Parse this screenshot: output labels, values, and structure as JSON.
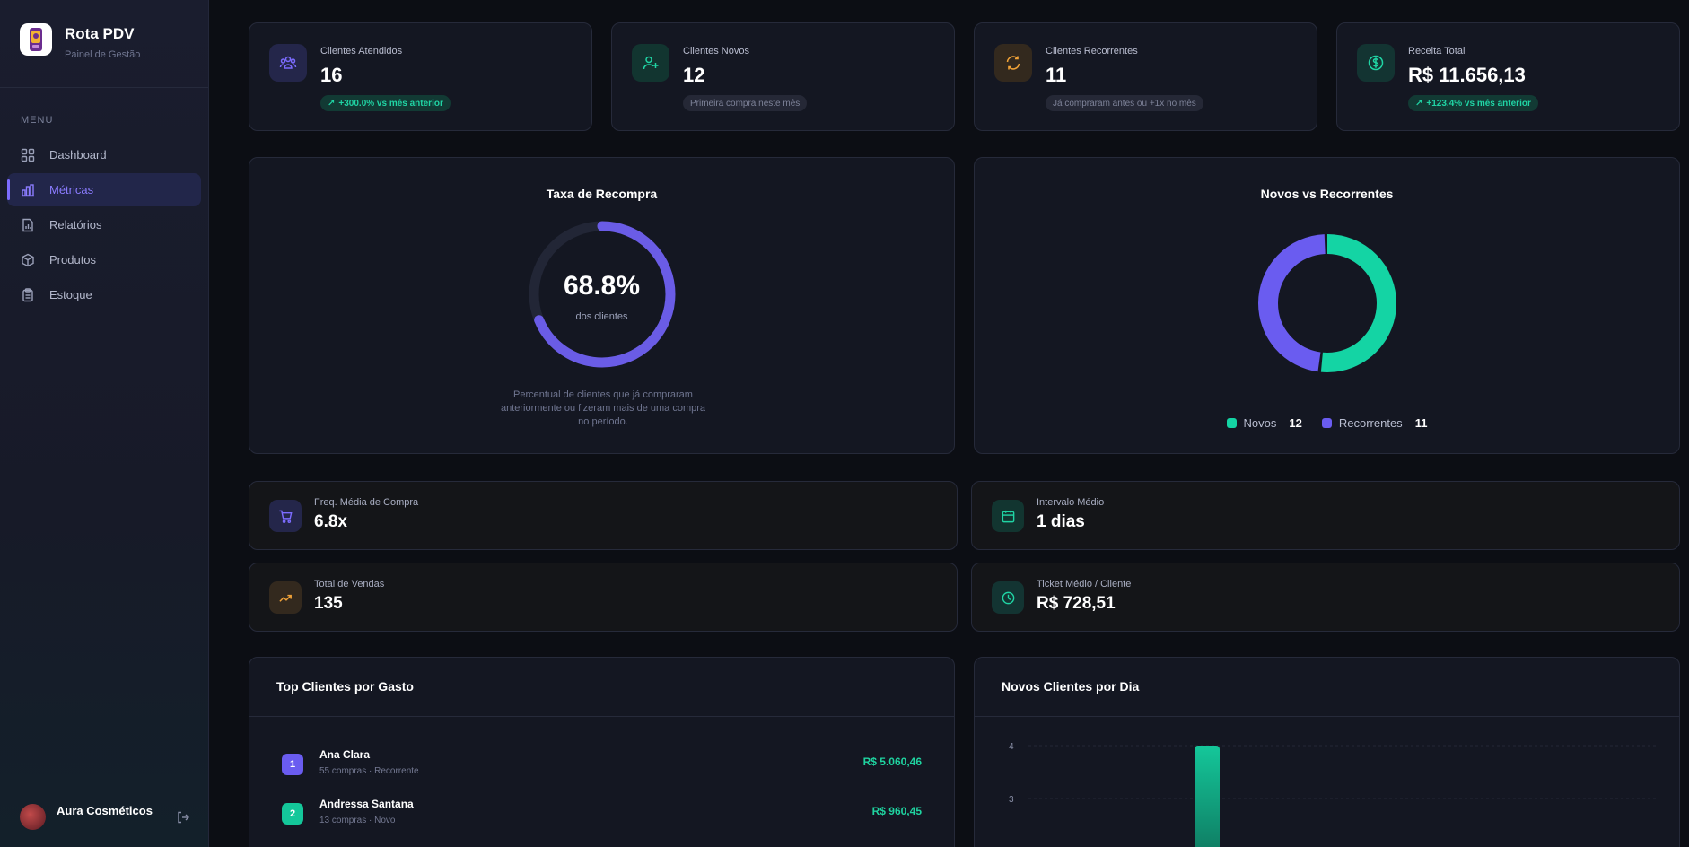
{
  "brand": {
    "title": "Rota PDV",
    "subtitle": "Painel de Gestão"
  },
  "sidebar": {
    "menu_label": "MENU",
    "items": [
      {
        "label": "Dashboard",
        "icon": "grid-icon"
      },
      {
        "label": "Métricas",
        "icon": "bar-chart-icon",
        "active": true
      },
      {
        "label": "Relatórios",
        "icon": "file-chart-icon"
      },
      {
        "label": "Produtos",
        "icon": "box-icon"
      },
      {
        "label": "Estoque",
        "icon": "clipboard-icon"
      }
    ],
    "user_name": "Aura Cosméticos"
  },
  "stats": [
    {
      "label": "Clientes Atendidos",
      "value": "16",
      "badge": "+300.0% vs mês anterior",
      "badge_type": "green",
      "icon": "users-group-icon",
      "accent": "#7c6cff"
    },
    {
      "label": "Clientes Novos",
      "value": "12",
      "badge": "Primeira compra neste mês",
      "badge_type": "gray",
      "icon": "user-plus-icon",
      "accent": "#20d4a4"
    },
    {
      "label": "Clientes Recorrentes",
      "value": "11",
      "badge": "Já compraram antes ou +1x no mês",
      "badge_type": "gray",
      "icon": "refresh-icon",
      "accent": "#f0a238"
    },
    {
      "label": "Receita Total",
      "value": "R$ 11.656,13",
      "badge": "+123.4% vs mês anterior",
      "badge_type": "green",
      "icon": "dollar-circle-icon",
      "accent": "#20d4a4"
    }
  ],
  "repurchase": {
    "title": "Taxa de Recompra",
    "value": "68.8%",
    "fraction": 0.688,
    "caption": "dos clientes",
    "description": "Percentual de clientes que já compraram anteriormente ou fizeram mais de uma compra no período."
  },
  "new_vs_recurring": {
    "title": "Novos vs Recorrentes",
    "legend": [
      {
        "label": "Novos",
        "value": "12",
        "color": "#14d4a4"
      },
      {
        "label": "Recorrentes",
        "value": "11",
        "color": "#6a5cf0"
      }
    ]
  },
  "metrics": [
    {
      "label": "Freq. Média de Compra",
      "value": "6.8x",
      "icon": "cart-icon",
      "accent": "#7c6cff"
    },
    {
      "label": "Intervalo Médio",
      "value": "1 dias",
      "icon": "calendar-icon",
      "accent": "#20d4a4"
    },
    {
      "label": "Total de Vendas",
      "value": "135",
      "icon": "trending-up-icon",
      "accent": "#f0a238"
    },
    {
      "label": "Ticket Médio / Cliente",
      "value": "R$ 728,51",
      "icon": "clock-icon",
      "accent": "#20d4a4"
    }
  ],
  "top_clients": {
    "title": "Top Clientes por Gasto",
    "rows": [
      {
        "rank": "1",
        "name": "Ana Clara",
        "meta": "55 compras · Recorrente",
        "amount": "R$ 5.060,46",
        "color": "#6a5cf0"
      },
      {
        "rank": "2",
        "name": "Andressa Santana",
        "meta": "13 compras · Novo",
        "amount": "R$ 960,45",
        "color": "#14c79a"
      }
    ]
  },
  "new_per_day": {
    "title": "Novos Clientes por Dia"
  },
  "chart_data": {
    "type": "bar",
    "title": "Novos Clientes por Dia",
    "yticks": [
      "4",
      "3"
    ],
    "ylim": [
      0,
      4
    ],
    "values": [
      4
    ],
    "color": "#14c79a",
    "grid": true
  }
}
